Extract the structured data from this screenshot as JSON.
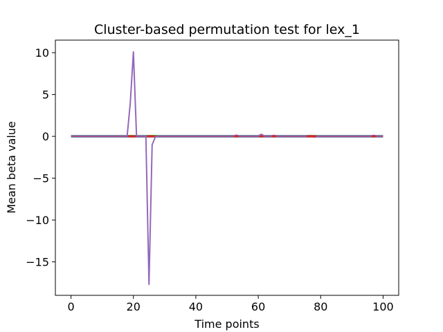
{
  "chart_data": {
    "type": "line",
    "title": "Cluster-based permutation test for lex_1",
    "xlabel": "Time points",
    "ylabel": "Mean beta value",
    "xlim": [
      -5,
      105
    ],
    "ylim": [
      -19,
      11.5
    ],
    "xticks": [
      0,
      20,
      40,
      60,
      80,
      100
    ],
    "yticks": [
      10,
      5,
      0,
      -5,
      -10,
      -15
    ],
    "ytick_labels": [
      "10",
      "5",
      "0",
      "−5",
      "−10",
      "−15"
    ],
    "grid": false,
    "legend": "none",
    "series": [
      {
        "color": "#9467bd",
        "x": [
          0,
          18,
          19,
          20,
          21,
          22,
          23,
          24,
          25,
          26,
          27,
          28,
          52,
          53,
          54,
          60,
          61,
          62,
          64,
          65,
          66,
          76,
          77,
          78,
          79,
          96,
          97,
          98,
          100
        ],
        "y": [
          0.05,
          0.05,
          4.0,
          10.1,
          0.05,
          0.05,
          0.05,
          0.05,
          -17.7,
          -1.0,
          -0.1,
          0.05,
          0.05,
          0.15,
          0.05,
          0.05,
          0.25,
          0.05,
          0.05,
          0.12,
          0.05,
          0.05,
          0.1,
          -0.1,
          0.05,
          0.05,
          0.12,
          0.05,
          0.05
        ]
      },
      {
        "color": "#d62728",
        "x": [
          0,
          100
        ],
        "y": [
          0.0,
          0.0
        ]
      },
      {
        "color": "#2ca02c",
        "x": [
          0,
          100
        ],
        "y": [
          0.08,
          0.08
        ]
      },
      {
        "color": "#1f77b4",
        "x": [
          0,
          100
        ],
        "y": [
          -0.05,
          -0.05
        ]
      }
    ],
    "markers": {
      "color": "#d62728",
      "x": [
        19,
        20,
        25,
        26,
        53,
        61,
        65,
        76,
        77,
        78,
        97
      ],
      "y": [
        0,
        0,
        0,
        0,
        0,
        0,
        0,
        0,
        0,
        0,
        0
      ]
    }
  }
}
